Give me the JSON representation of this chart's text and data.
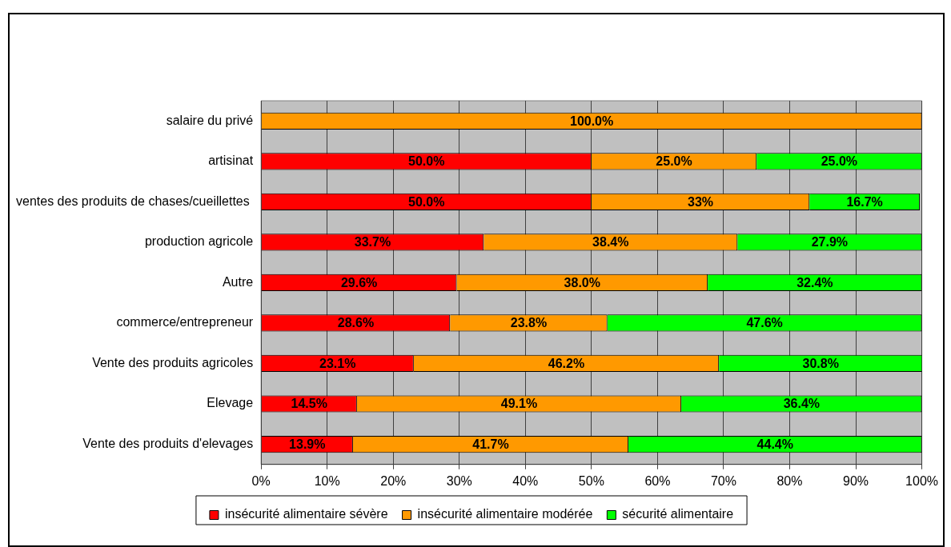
{
  "chart_data": {
    "type": "bar",
    "orientation": "horizontal",
    "stacked": true,
    "categories": [
      "salaire du privé",
      "artisinat",
      "ventes des produits de chases/cueillettes ",
      "production agricole",
      "Autre",
      "commerce/entrepreneur",
      "Vente des produits agricoles",
      "Elevage",
      "Vente des produits d'elevages"
    ],
    "series": [
      {
        "name": "insécurité alimentaire sévère",
        "color": "#ff0000",
        "values": [
          0,
          50.0,
          50.0,
          33.7,
          29.6,
          28.6,
          23.1,
          14.5,
          13.9
        ],
        "value_labels": [
          null,
          "50.0%",
          "50.0%",
          "33.7%",
          "29.6%",
          "28.6%",
          "23.1%",
          "14.5%",
          "13.9%"
        ]
      },
      {
        "name": "insécurité alimentaire modérée",
        "color": "#ff9900",
        "values": [
          100.0,
          25.0,
          33,
          38.4,
          38.0,
          23.8,
          46.2,
          49.1,
          41.7
        ],
        "value_labels": [
          "100.0%",
          "25.0%",
          "33%",
          "38.4%",
          "38.0%",
          "23.8%",
          "46.2%",
          "49.1%",
          "41.7%"
        ]
      },
      {
        "name": "sécurité alimentaire",
        "color": "#00ff00",
        "values": [
          0,
          25.0,
          16.7,
          27.9,
          32.4,
          47.6,
          30.8,
          36.4,
          44.4
        ],
        "value_labels": [
          null,
          "25.0%",
          "16.7%",
          "27.9%",
          "32.4%",
          "47.6%",
          "30.8%",
          "36.4%",
          "44.4%"
        ]
      }
    ],
    "xlim": [
      0,
      100
    ],
    "xticks": [
      {
        "value": 0,
        "label": "0%"
      },
      {
        "value": 10,
        "label": "10%"
      },
      {
        "value": 20,
        "label": "20%"
      },
      {
        "value": 30,
        "label": "30%"
      },
      {
        "value": 40,
        "label": "40%"
      },
      {
        "value": 50,
        "label": "50%"
      },
      {
        "value": 60,
        "label": "60%"
      },
      {
        "value": 70,
        "label": "70%"
      },
      {
        "value": 80,
        "label": "80%"
      },
      {
        "value": 90,
        "label": "90%"
      },
      {
        "value": 100,
        "label": "100%"
      }
    ],
    "grid": "x",
    "legend": "bottom"
  }
}
